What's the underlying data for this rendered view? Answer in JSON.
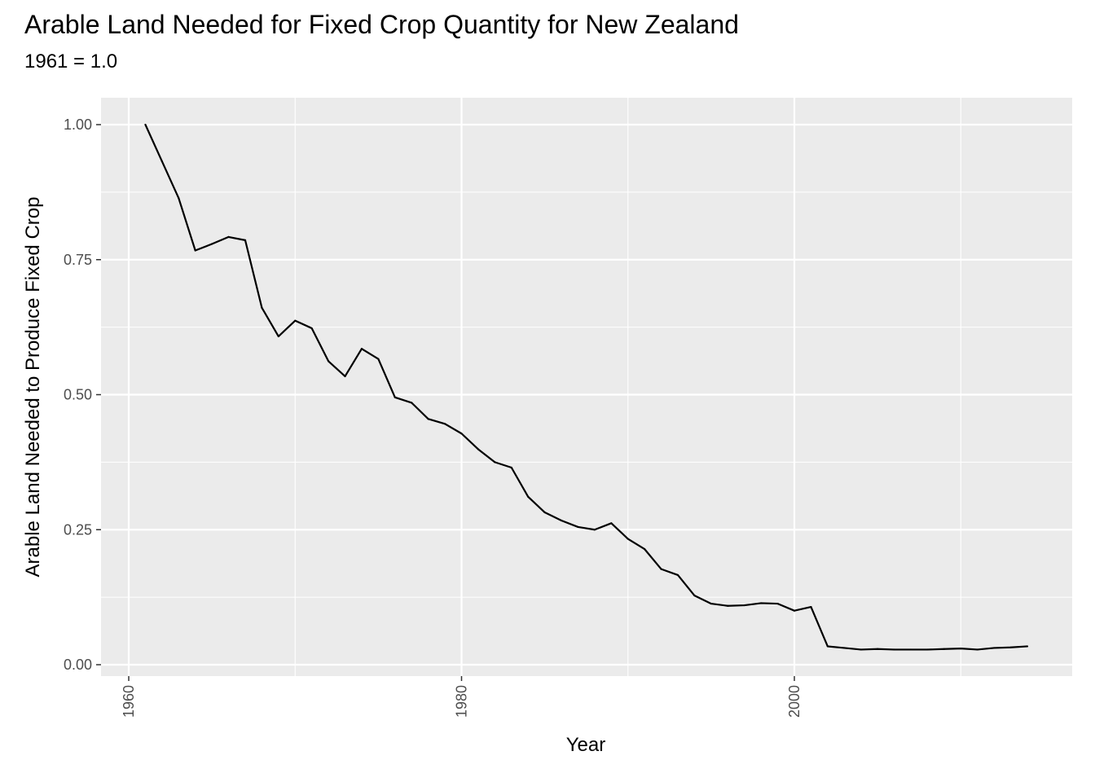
{
  "chart_data": {
    "type": "line",
    "title": "Arable Land Needed for Fixed Crop Quantity for New Zealand",
    "subtitle": "1961 = 1.0",
    "xlabel": "Year",
    "ylabel": "Arable Land Needed to Produce Fixed Crop",
    "xlim": [
      1961,
      2014
    ],
    "ylim": [
      0,
      1.0
    ],
    "x_ticks": [
      1960,
      1980,
      2000
    ],
    "x_tick_labels": [
      "1960",
      "1980",
      "2000"
    ],
    "y_ticks": [
      0,
      0.25,
      0.5,
      0.75,
      1.0
    ],
    "y_tick_labels": [
      "0.00",
      "0.25",
      "0.50",
      "0.75",
      "1.00"
    ],
    "grid": true,
    "legend": "none",
    "colors": {
      "panel_background": "#ebebeb",
      "grid": "#ffffff",
      "line": "#000000"
    },
    "series": [
      {
        "x": [
          1961,
          1962,
          1963,
          1964,
          1965,
          1966,
          1967,
          1968,
          1969,
          1970,
          1971,
          1972,
          1973,
          1974,
          1975,
          1976,
          1977,
          1978,
          1979,
          1980,
          1981,
          1982,
          1983,
          1984,
          1985,
          1986,
          1987,
          1988,
          1989,
          1990,
          1991,
          1992,
          1993,
          1994,
          1995,
          1996,
          1997,
          1998,
          1999,
          2000,
          2001,
          2002,
          2003,
          2004,
          2005,
          2006,
          2007,
          2008,
          2009,
          2010,
          2011,
          2012,
          2013,
          2014
        ],
        "values": [
          1.0,
          0.932,
          0.864,
          0.767,
          0.779,
          0.792,
          0.786,
          0.661,
          0.608,
          0.637,
          0.623,
          0.562,
          0.534,
          0.585,
          0.566,
          0.495,
          0.485,
          0.455,
          0.446,
          0.428,
          0.399,
          0.375,
          0.365,
          0.311,
          0.282,
          0.267,
          0.255,
          0.25,
          0.262,
          0.233,
          0.214,
          0.177,
          0.166,
          0.128,
          0.113,
          0.109,
          0.11,
          0.114,
          0.113,
          0.1,
          0.107,
          0.034,
          0.031,
          0.028,
          0.029,
          0.028,
          0.028,
          0.028,
          0.029,
          0.03,
          0.028,
          0.031,
          0.032,
          0.034
        ]
      }
    ]
  }
}
